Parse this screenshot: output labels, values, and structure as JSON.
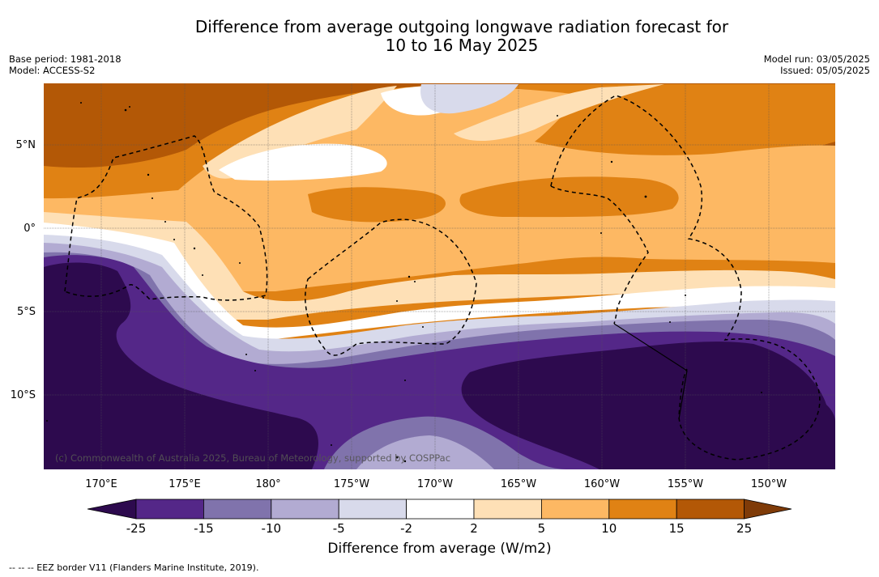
{
  "title_line1": "Difference from average outgoing longwave radiation forecast for",
  "title_line2": "10 to 16 May 2025",
  "meta_left": {
    "base_period": "Base period: 1981-2018",
    "model": "Model: ACCESS-S2"
  },
  "meta_right": {
    "model_run": "Model run: 03/05/2025",
    "issued": "Issued: 05/05/2025"
  },
  "credit": "(c) Commonwealth of Australia 2025, Bureau of Meteorology, supported by COSPPac",
  "footer": "-- -- -- EEZ border V11 (Flanders Marine Institute, 2019).",
  "lat_labels": [
    "5°N",
    "0°",
    "5°S",
    "10°S"
  ],
  "lon_labels": [
    "170°E",
    "175°E",
    "180°",
    "175°W",
    "170°W",
    "165°W",
    "160°W",
    "155°W",
    "150°W"
  ],
  "colorbar": {
    "label": "Difference from average (W/m2)",
    "ticks": [
      "-25",
      "-15",
      "-10",
      "-5",
      "-2",
      "2",
      "5",
      "10",
      "15",
      "25"
    ],
    "colors": {
      "below_min": "#2d0a4e",
      "c1": "#542788",
      "c2": "#8073ac",
      "c3": "#b2abd2",
      "c4": "#d8daeb",
      "c5": "#ffffff",
      "c6": "#fee0b6",
      "c7": "#fdb863",
      "c8": "#e08214",
      "c9": "#b35806",
      "above_max": "#7f3b08"
    }
  }
}
